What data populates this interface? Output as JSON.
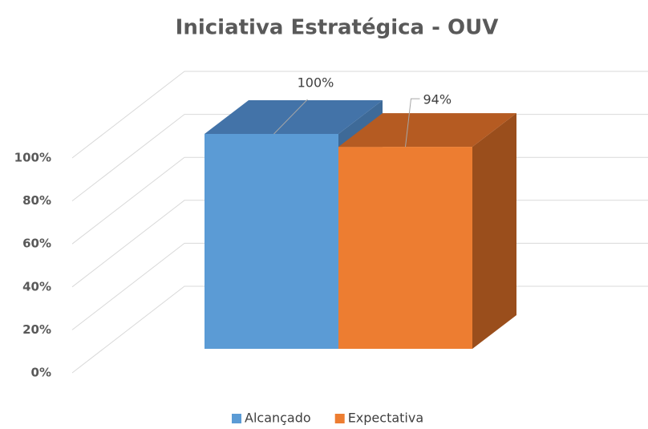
{
  "chart_data": {
    "type": "bar3d",
    "title": "Iniciativa Estratégica - OUV",
    "categories": [
      null
    ],
    "series": [
      {
        "name": "Alcançado",
        "color": "#5b9bd5",
        "top_color": "#4373a8",
        "side_color": "#3e6a98",
        "values": [
          100
        ],
        "value_labels": [
          "100%"
        ]
      },
      {
        "name": "Expectativa",
        "color": "#ed7d31",
        "top_color": "#b55b22",
        "side_color": "#9a4e1c",
        "values": [
          94
        ],
        "value_labels": [
          "94%"
        ]
      }
    ],
    "ylim": [
      0,
      100
    ],
    "yticks": [
      {
        "value": 0,
        "label": "0%"
      },
      {
        "value": 20,
        "label": "20%"
      },
      {
        "value": 40,
        "label": "40%"
      },
      {
        "value": 60,
        "label": "60%"
      },
      {
        "value": 80,
        "label": "80%"
      },
      {
        "value": 100,
        "label": "100%"
      }
    ],
    "grid": true,
    "legend": "bottom"
  }
}
